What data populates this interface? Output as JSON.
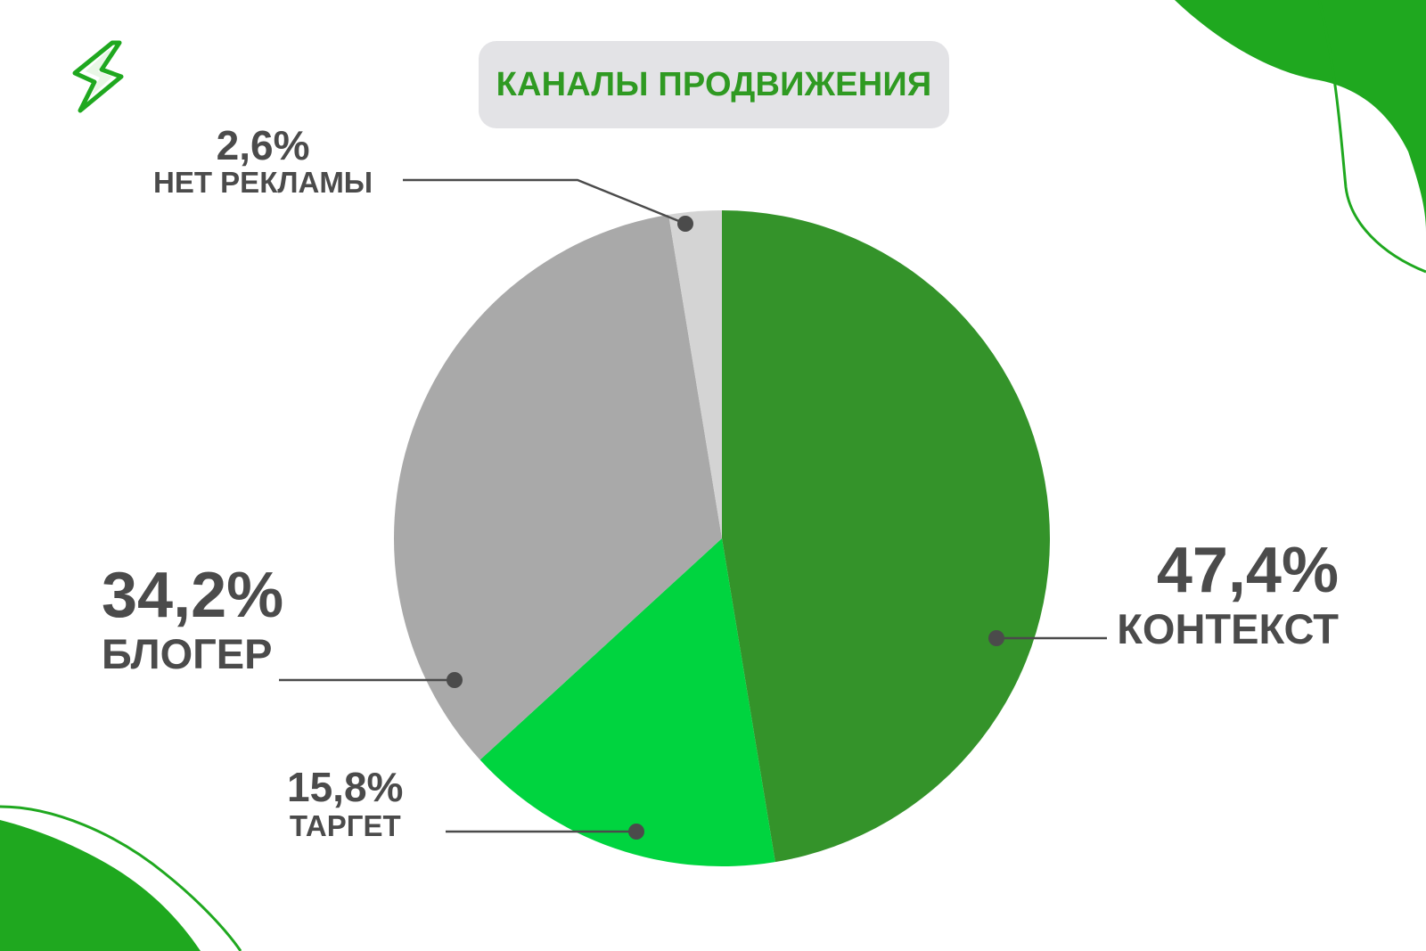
{
  "title": "КАНАЛЫ ПРОДВИЖЕНИЯ",
  "colors": {
    "title_text": "#2f9a22",
    "title_bg": "#e3e3e6",
    "accent_green": "#1fa81f",
    "label_text": "#4b4b4b"
  },
  "logo": {
    "icon": "lightning-bolt-icon"
  },
  "chart_data": {
    "type": "pie",
    "title": "КАНАЛЫ ПРОДВИЖЕНИЯ",
    "start_angle_deg": 0,
    "direction": "clockwise",
    "slices": [
      {
        "label": "КОНТЕКСТ",
        "value": 47.4,
        "value_label": "47,4%",
        "color": "#34932a"
      },
      {
        "label": "ТАРГЕТ",
        "value": 15.8,
        "value_label": "15,8%",
        "color": "#00d43f"
      },
      {
        "label": "БЛОГЕР",
        "value": 34.2,
        "value_label": "34,2%",
        "color": "#a9a9a9"
      },
      {
        "label": "НЕТ РЕКЛАМЫ",
        "value": 2.6,
        "value_label": "2,6%",
        "color": "#d4d4d4"
      }
    ]
  }
}
